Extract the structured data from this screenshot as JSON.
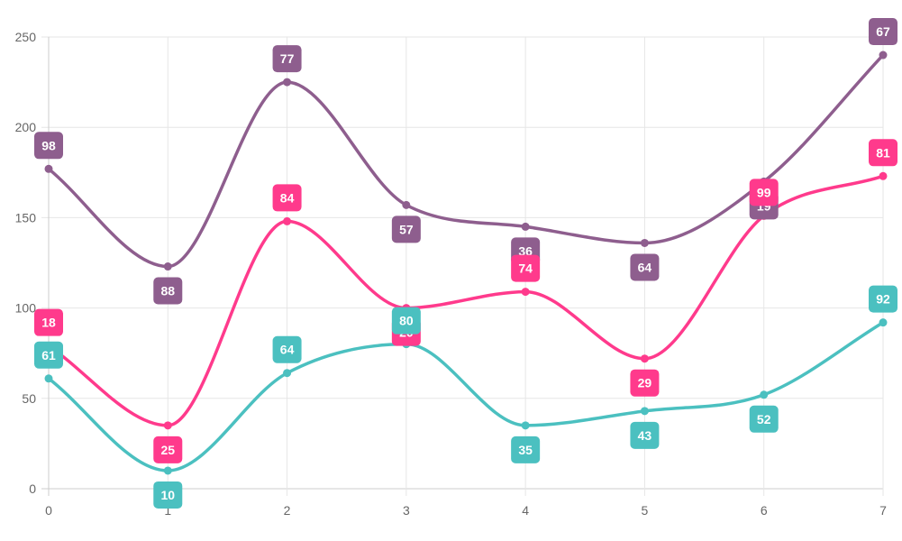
{
  "chart_data": {
    "type": "line",
    "stacked": true,
    "curve": "smooth",
    "x": [
      0,
      1,
      2,
      3,
      4,
      5,
      6,
      7
    ],
    "ylim": [
      0,
      250
    ],
    "yticks": [
      0,
      50,
      100,
      150,
      200,
      250
    ],
    "grid": true,
    "legend": "none",
    "series": [
      {
        "color": "#4bc0c0",
        "values": [
          61,
          10,
          64,
          80,
          35,
          43,
          52,
          92
        ]
      },
      {
        "color": "#ff3a8c",
        "values": [
          18,
          25,
          84,
          20,
          74,
          29,
          99,
          81
        ]
      },
      {
        "color": "#8e5e8e",
        "values": [
          98,
          88,
          77,
          57,
          36,
          64,
          19,
          67
        ]
      }
    ]
  }
}
